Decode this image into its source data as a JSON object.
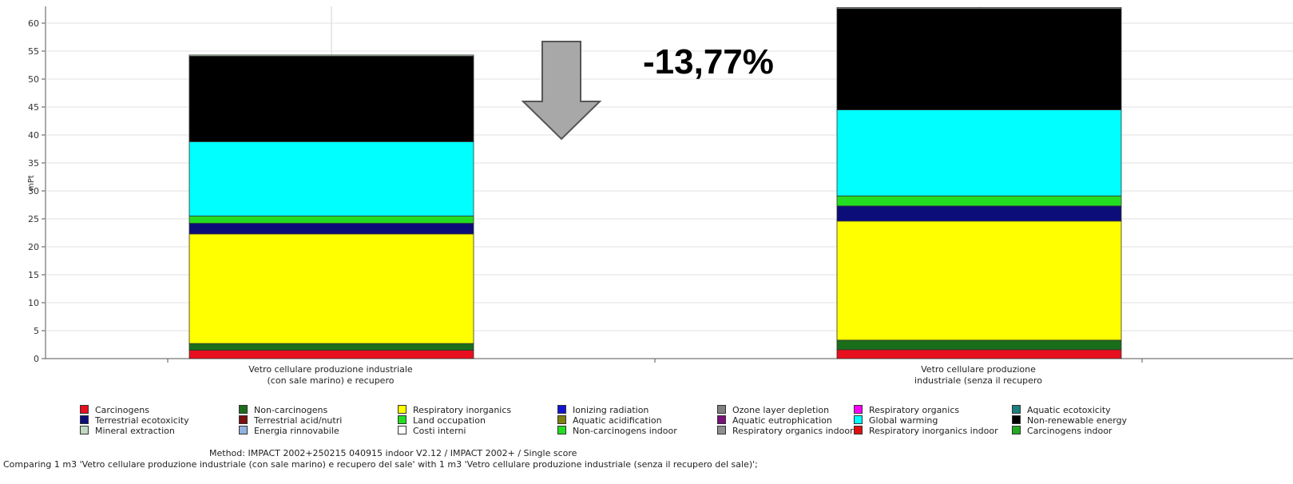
{
  "chart_data": {
    "type": "bar",
    "stacked": true,
    "ylabel": "mPt",
    "ylim": [
      0,
      63
    ],
    "yticks": [
      0,
      5,
      10,
      15,
      20,
      25,
      30,
      35,
      40,
      45,
      50,
      55,
      60
    ],
    "grid": true,
    "categories": [
      [
        "Vetro cellulare produzione industriale",
        "(con sale marino) e recupero"
      ],
      [
        "Vetro cellulare produzione",
        "industriale (senza il recupero"
      ]
    ],
    "series": [
      {
        "name": "Carcinogens",
        "color": "#e8101e",
        "values": [
          1.5,
          1.6
        ]
      },
      {
        "name": "Non-carcinogens",
        "color": "#1a6e1a",
        "values": [
          1.2,
          1.7
        ]
      },
      {
        "name": "Respiratory inorganics",
        "color": "#ffff00",
        "values": [
          19.6,
          21.3
        ]
      },
      {
        "name": "Ionizing radiation",
        "color": "#1414d0",
        "values": [
          0.0,
          0.0
        ]
      },
      {
        "name": "Ozone layer depletion",
        "color": "#7f7f7f",
        "values": [
          0.0,
          0.0
        ]
      },
      {
        "name": "Respiratory organics",
        "color": "#ff00ff",
        "values": [
          0.0,
          0.0
        ]
      },
      {
        "name": "Aquatic ecotoxicity",
        "color": "#1a7f7f",
        "values": [
          0.0,
          0.0
        ]
      },
      {
        "name": "Terrestrial ecotoxicity",
        "color": "#0d0d7a",
        "values": [
          1.9,
          2.7
        ]
      },
      {
        "name": "Terrestrial acid/nutri",
        "color": "#7a1010",
        "values": [
          0.0,
          0.0
        ]
      },
      {
        "name": "Land occupation",
        "color": "#22dd22",
        "values": [
          1.3,
          1.8
        ]
      },
      {
        "name": "Aquatic acidification",
        "color": "#7f7f10",
        "values": [
          0.0,
          0.0
        ]
      },
      {
        "name": "Aquatic eutrophication",
        "color": "#7a107a",
        "values": [
          0.0,
          0.0
        ]
      },
      {
        "name": "Global warming",
        "color": "#00ffff",
        "values": [
          13.3,
          15.4
        ]
      },
      {
        "name": "Non-renewable energy",
        "color": "#000000",
        "values": [
          15.3,
          18.1
        ]
      },
      {
        "name": "Mineral extraction",
        "color": "#c0d8c0",
        "values": [
          0.2,
          0.2
        ]
      },
      {
        "name": "Energia rinnovabile",
        "color": "#8fb2e0",
        "values": [
          0.0,
          0.0
        ]
      },
      {
        "name": "Costi interni",
        "color": "#ffffff",
        "values": [
          0.0,
          0.0
        ]
      },
      {
        "name": "Non-carcinogens indoor",
        "color": "#22dd22",
        "values": [
          0.0,
          0.0
        ]
      },
      {
        "name": "Respiratory organics indoor",
        "color": "#8f8f8f",
        "values": [
          0.0,
          0.0
        ]
      },
      {
        "name": "Respiratory inorganics indoor",
        "color": "#e01010",
        "values": [
          0.0,
          0.0
        ]
      },
      {
        "name": "Carcinogens indoor",
        "color": "#22aa22",
        "values": [
          0.0,
          0.0
        ]
      }
    ],
    "annotation": "-13,77%"
  },
  "method_text": "Method: IMPACT 2002+250215 040915 indoor V2.12 / IMPACT 2002+ / Single score",
  "comparing_text": "Comparing 1 m3 'Vetro cellulare produzione industriale (con sale marino) e recupero del sale' with 1 m3 'Vetro cellulare produzione industriale (senza il recupero del sale)';"
}
